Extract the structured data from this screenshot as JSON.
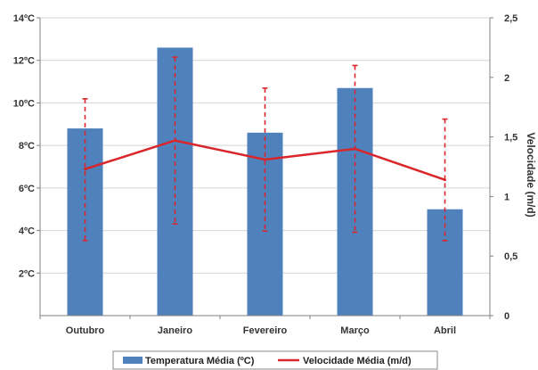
{
  "chart_data": {
    "type": "bar",
    "categories": [
      "Outubro",
      "Janeiro",
      "Fevereiro",
      "Março",
      "Abril"
    ],
    "series": [
      {
        "name": "Temperatura Média (ºC)",
        "type": "bar",
        "axis": "left",
        "values": [
          8.8,
          12.6,
          8.6,
          10.7,
          5.0
        ],
        "color": "#4f81bd"
      },
      {
        "name": "Velocidade Média (m/d)",
        "type": "line",
        "axis": "right",
        "values": [
          1.23,
          1.47,
          1.31,
          1.4,
          1.14
        ],
        "error_high": [
          1.82,
          2.17,
          1.91,
          2.1,
          1.65
        ],
        "error_low": [
          0.63,
          0.77,
          0.71,
          0.7,
          0.63
        ],
        "color": "#d9262b"
      }
    ],
    "y_left": {
      "ylim": [
        0,
        14
      ],
      "ticks": [
        2,
        4,
        6,
        8,
        10,
        12,
        14
      ],
      "tick_labels": [
        "2ºC",
        "4ºC",
        "6ºC",
        "8ºC",
        "10ºC",
        "12ºC",
        "14ºC"
      ]
    },
    "y_right": {
      "ylim": [
        0,
        2.5
      ],
      "ticks": [
        0,
        0.5,
        1,
        1.5,
        2,
        2.5
      ],
      "tick_labels": [
        "0",
        "0,5",
        "1",
        "1,5",
        "2",
        "2,5"
      ],
      "label": "Velocidade (m/d)"
    },
    "grid": true,
    "legend": "bottom"
  }
}
